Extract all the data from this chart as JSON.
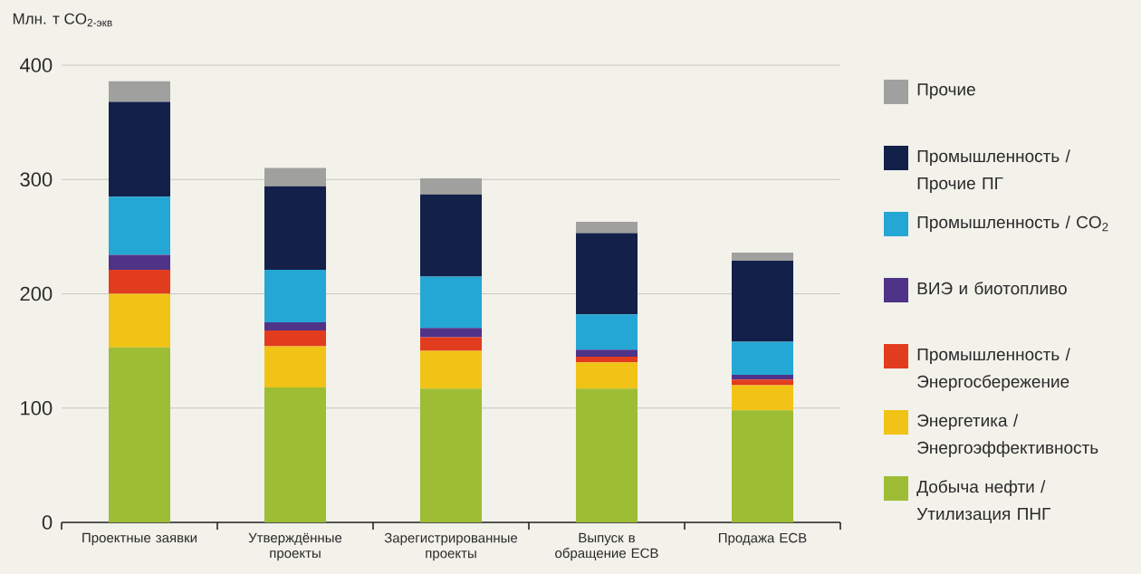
{
  "chart_data": {
    "type": "bar",
    "stacked": true,
    "ylabel": "Млн. т CO$_{2-экв}$",
    "categories": [
      "Проектные заявки",
      "Утверждённые проекты",
      "Зарегистрированные проекты",
      "Выпуск в обращение ЕСВ",
      "Продажа ЕСВ"
    ],
    "series": [
      {
        "name": "Добыча нефти / Утилизация ПНГ",
        "color": "#9dbd35",
        "values": [
          153,
          118,
          117,
          117,
          98
        ]
      },
      {
        "name": "Энергетика / Энергоэффективность",
        "color": "#f1c316",
        "values": [
          47,
          36,
          33,
          23,
          22
        ]
      },
      {
        "name": "Промышленность / Энергосбережение",
        "color": "#e23c1f",
        "values": [
          21,
          14,
          12,
          5,
          5
        ]
      },
      {
        "name": "ВИЭ и биотопливо",
        "color": "#4f3388",
        "values": [
          13,
          7,
          8,
          6,
          4
        ]
      },
      {
        "name": "Промышленность / CO$_{2}$",
        "color": "#24a7d4",
        "values": [
          51,
          46,
          45,
          31,
          29
        ]
      },
      {
        "name": "Промышленность / Прочие ПГ",
        "color": "#12204a",
        "values": [
          83,
          73,
          72,
          71,
          71
        ]
      },
      {
        "name": "Прочие",
        "color": "#a0a09e",
        "values": [
          18,
          16,
          14,
          10,
          7
        ]
      }
    ],
    "ylim": [
      0,
      400
    ],
    "yticks": [
      0,
      100,
      200,
      300,
      400
    ],
    "grid": "y",
    "legend": "right"
  }
}
